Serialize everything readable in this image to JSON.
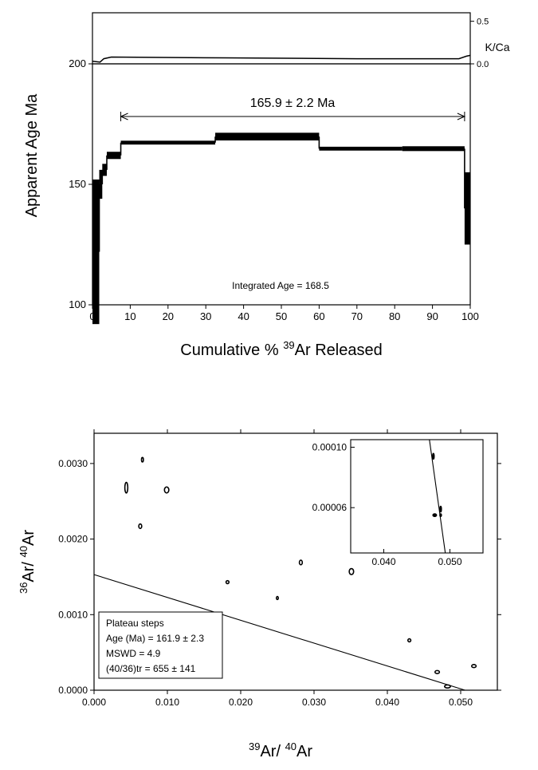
{
  "chart_data": [
    {
      "type": "step",
      "panel": "age-spectrum",
      "ylabel": "Apparent Age Ma",
      "xlabel": {
        "prefix": "Cumulative % ",
        "sup": "39",
        "suffix": "Ar Released"
      },
      "xlim": [
        0,
        100
      ],
      "ylim": [
        100,
        200
      ],
      "xticks": [
        0,
        10,
        20,
        30,
        40,
        50,
        60,
        70,
        80,
        90,
        100
      ],
      "yticks": [
        100,
        150,
        200
      ],
      "steps": [
        {
          "x0": 0.0,
          "x1": 1.8,
          "age": 122,
          "err": 30
        },
        {
          "x0": 1.8,
          "x1": 2.6,
          "age": 150,
          "err": 6
        },
        {
          "x0": 2.6,
          "x1": 3.8,
          "age": 156,
          "err": 2.5
        },
        {
          "x0": 3.8,
          "x1": 7.5,
          "age": 162,
          "err": 1.5
        },
        {
          "x0": 7.5,
          "x1": 32.5,
          "age": 167.3,
          "err": 0.8
        },
        {
          "x0": 32.5,
          "x1": 60.0,
          "age": 169.8,
          "err": 1.6
        },
        {
          "x0": 60.0,
          "x1": 82.0,
          "age": 164.8,
          "err": 0.8
        },
        {
          "x0": 82.0,
          "x1": 98.5,
          "age": 164.8,
          "err": 1.0
        },
        {
          "x0": 98.5,
          "x1": 100.0,
          "age": 140,
          "err": 15
        }
      ],
      "kca": {
        "label": "K/Ca",
        "ticks": [
          {
            "value": 0.0,
            "label": "0.0"
          },
          {
            "value": 0.5,
            "label": "0.5"
          }
        ],
        "ylim": [
          0,
          0.6
        ],
        "points": [
          [
            0,
            0.03
          ],
          [
            2,
            0.02
          ],
          [
            3,
            0.06
          ],
          [
            5,
            0.08
          ],
          [
            35,
            0.07
          ],
          [
            70,
            0.06
          ],
          [
            97,
            0.06
          ],
          [
            99,
            0.09
          ],
          [
            100,
            0.1
          ]
        ]
      },
      "plateau": {
        "x0": 7.5,
        "x1": 98.5,
        "label": "165.9 ± 2.2 Ma"
      },
      "annotation": "Integrated Age = 168.5"
    },
    {
      "type": "scatter",
      "panel": "isochron",
      "xlabel": {
        "sup1": "39",
        "mid": "Ar/ ",
        "sup2": "40",
        "end": "Ar"
      },
      "ylabel": {
        "sup1": "36",
        "mid": "Ar/ ",
        "sup2": "40",
        "end": "Ar"
      },
      "xlim": [
        0.0,
        0.055
      ],
      "ylim": [
        0.0,
        0.0034
      ],
      "xticks": [
        {
          "v": 0.0,
          "l": "0.000"
        },
        {
          "v": 0.01,
          "l": "0.010"
        },
        {
          "v": 0.02,
          "l": "0.020"
        },
        {
          "v": 0.03,
          "l": "0.030"
        },
        {
          "v": 0.04,
          "l": "0.040"
        },
        {
          "v": 0.05,
          "l": "0.050"
        }
      ],
      "yticks": [
        {
          "v": 0.0,
          "l": "0.0000"
        },
        {
          "v": 0.001,
          "l": "0.0010"
        },
        {
          "v": 0.002,
          "l": "0.0020"
        },
        {
          "v": 0.003,
          "l": "0.0030"
        }
      ],
      "points": [
        {
          "x": 0.0044,
          "y": 0.00268,
          "ex": 0.0002,
          "ey": 7e-05
        },
        {
          "x": 0.0066,
          "y": 0.00305,
          "ex": 0.0001,
          "ey": 3e-05
        },
        {
          "x": 0.0099,
          "y": 0.00265,
          "ex": 0.0003,
          "ey": 4e-05
        },
        {
          "x": 0.0063,
          "y": 0.00217,
          "ex": 0.0002,
          "ey": 3e-05
        },
        {
          "x": 0.0182,
          "y": 0.00143,
          "ex": 0.0002,
          "ey": 2e-05
        },
        {
          "x": 0.025,
          "y": 0.00122,
          "ex": 0.0001,
          "ey": 2e-05
        },
        {
          "x": 0.0282,
          "y": 0.00169,
          "ex": 0.0002,
          "ey": 3e-05
        },
        {
          "x": 0.0351,
          "y": 0.00157,
          "ex": 0.0003,
          "ey": 4e-05
        },
        {
          "x": 0.043,
          "y": 0.00066,
          "ex": 0.0002,
          "ey": 2e-05
        },
        {
          "x": 0.0468,
          "y": 0.00024,
          "ex": 0.0003,
          "ey": 2e-05
        },
        {
          "x": 0.0518,
          "y": 0.00032,
          "ex": 0.0003,
          "ey": 2e-05
        },
        {
          "x": 0.0482,
          "y": 5e-05,
          "ex": 0.0004,
          "ey": 2e-05
        }
      ],
      "fit_line": {
        "x0": 0.0,
        "y0": 0.00153,
        "x1": 0.0506,
        "y1": 0.0
      },
      "legend": {
        "title": "Plateau steps",
        "lines": [
          "Age (Ma) =  161.9  ± 2.3",
          "MSWD   =  4.9",
          "(40/36)tr = 655 ± 141"
        ]
      },
      "inset": {
        "xlim": [
          0.035,
          0.055
        ],
        "ylim": [
          3e-05,
          0.000105
        ],
        "xticks": [
          {
            "v": 0.04,
            "l": "0.040"
          },
          {
            "v": 0.05,
            "l": "0.050"
          }
        ],
        "yticks": [
          {
            "v": 6e-05,
            "l": "0.00006"
          },
          {
            "v": 0.0001,
            "l": "0.00010"
          }
        ],
        "points": [
          {
            "x": 0.0475,
            "y": 9.4e-05,
            "ex": 0.0001,
            "ey": 2e-06
          },
          {
            "x": 0.0486,
            "y": 5.9e-05,
            "ex": 0.0001,
            "ey": 2e-06
          },
          {
            "x": 0.0477,
            "y": 5.5e-05,
            "ex": 0.0003,
            "ey": 1e-06
          },
          {
            "x": 0.0486,
            "y": 5.5e-05,
            "ex": 0.0001,
            "ey": 1e-06
          }
        ],
        "fit_line": {
          "x0": 0.0469,
          "y0": 0.000105,
          "x1": 0.0493,
          "y1": 3e-05
        }
      }
    }
  ]
}
